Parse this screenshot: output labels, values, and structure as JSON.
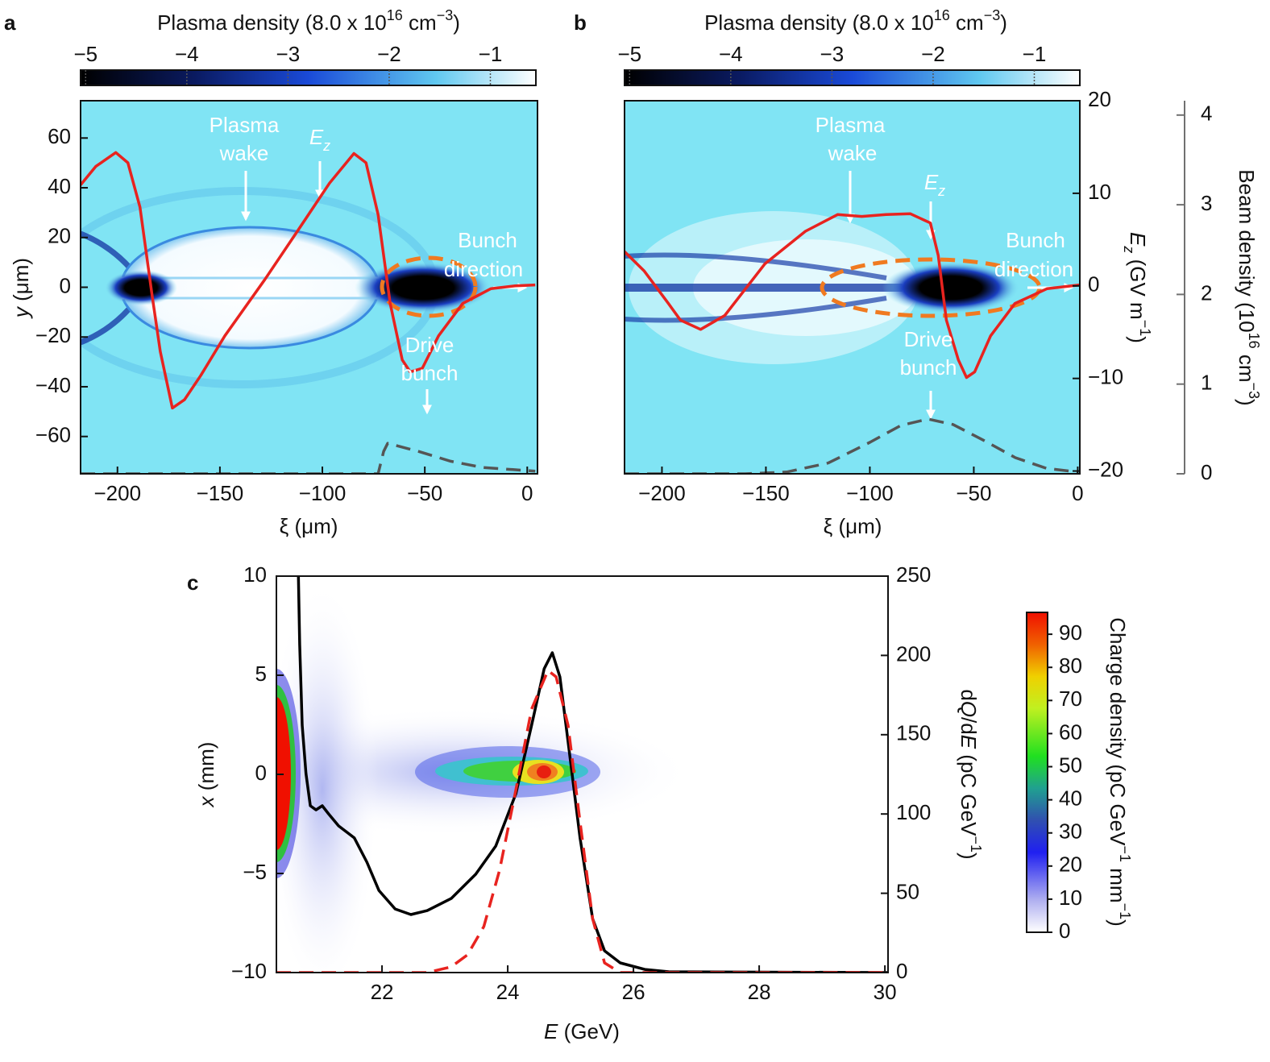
{
  "chart_data": [
    {
      "type": "heatmap",
      "panel_label": "a",
      "colorbar": {
        "label": [
          {
            "text": "Plasma density (8.0 x 10"
          },
          {
            "text": "16",
            "style": "sup"
          },
          {
            "text": " cm"
          },
          {
            "text": "−3",
            "style": "sup"
          },
          {
            "text": ")"
          }
        ],
        "lim": [
          -5.05,
          -0.55
        ],
        "ticks": [
          {
            "value": -5,
            "label": "−5"
          },
          {
            "value": -4,
            "label": "−4"
          },
          {
            "value": -3,
            "label": "−3"
          },
          {
            "value": -2,
            "label": "−2"
          },
          {
            "value": -1,
            "label": "−1"
          }
        ]
      },
      "xlabel": "ξ (μm)",
      "xlim": [
        -218,
        5
      ],
      "xticks": [
        {
          "value": -200,
          "label": "−200"
        },
        {
          "value": -150,
          "label": "−150"
        },
        {
          "value": -100,
          "label": "−100"
        },
        {
          "value": -50,
          "label": "−50"
        },
        0
      ],
      "ylabel": [
        {
          "text": "y",
          "style": "italic"
        },
        {
          "text": " (μm)"
        }
      ],
      "ylim": [
        -75,
        75
      ],
      "yticks": [
        {
          "value": -60,
          "label": "−60"
        },
        {
          "value": -40,
          "label": "−40"
        },
        {
          "value": -20,
          "label": "−20"
        },
        0,
        20,
        40,
        60
      ],
      "y2lim": [
        -20.3,
        20
      ],
      "y3lim": [
        0,
        4.16
      ],
      "series": [
        {
          "color": "#e8231f",
          "axis": "y2",
          "x": [
            -218,
            -210.6,
            -200.8,
            -194.9,
            -189.0,
            -183.1,
            -179.1,
            -173.2,
            -167.3,
            -159.4,
            -147.6,
            -128.0,
            -112.2,
            -96.5,
            -84.6,
            -78.7,
            -72.8,
            -66.9,
            -61.0,
            -57.1,
            -51.2,
            -43.3,
            -31.5,
            -17.7,
            -5.9,
            3.9
          ],
          "values": [
            10.9,
            12.9,
            14.4,
            13.3,
            8.5,
            -1.0,
            -7.1,
            -13.2,
            -12.3,
            -9.7,
            -5.4,
            0.7,
            5.9,
            11.1,
            14.3,
            13.3,
            7.7,
            -1.9,
            -8.0,
            -9.3,
            -8.9,
            -5.4,
            -1.9,
            -0.3,
            0,
            0.1
          ]
        },
        {
          "color": "#555555",
          "axis": "y3",
          "dash": true,
          "x": [
            -218,
            -72.8,
            -70.1,
            -68.1,
            -53.1,
            -37.4,
            -21.7,
            3.9
          ],
          "values": [
            0,
            0,
            0.25,
            0.34,
            0.25,
            0.14,
            0.07,
            0.03
          ]
        }
      ],
      "annotations": [
        {
          "lines": [
            "Plasma",
            "wake"
          ]
        },
        {
          "lines": [
            [
              {
                "text": "E",
                "style": "italic"
              },
              {
                "text": "z",
                "style": "sub"
              }
            ]
          ]
        },
        {
          "lines": [
            "Bunch",
            "direction"
          ]
        },
        {
          "lines": [
            "Drive",
            "bunch"
          ]
        }
      ]
    },
    {
      "type": "heatmap",
      "panel_label": "b",
      "colorbar": {
        "label": [
          {
            "text": "Plasma density (8.0 x 10"
          },
          {
            "text": "16",
            "style": "sup"
          },
          {
            "text": " cm"
          },
          {
            "text": "−3",
            "style": "sup"
          },
          {
            "text": ")"
          }
        ],
        "lim": [
          -5.05,
          -0.55
        ],
        "ticks": [
          {
            "value": -5,
            "label": "−5"
          },
          {
            "value": -4,
            "label": "−4"
          },
          {
            "value": -3,
            "label": "−3"
          },
          {
            "value": -2,
            "label": "−2"
          },
          {
            "value": -1,
            "label": "−1"
          }
        ]
      },
      "xlabel": "ξ (μm)",
      "xlim": [
        -218,
        1
      ],
      "xticks": [
        {
          "value": -200,
          "label": "−200"
        },
        {
          "value": -150,
          "label": "−150"
        },
        {
          "value": -100,
          "label": "−100"
        },
        {
          "value": -50,
          "label": "−50"
        },
        0
      ],
      "ylim": [
        -75,
        75
      ],
      "y2label": [
        {
          "text": "E",
          "style": "italic"
        },
        {
          "text": "z",
          "style": "sub"
        },
        {
          "text": " (GV m"
        },
        {
          "text": "−1",
          "style": "sup"
        },
        {
          "text": ")"
        }
      ],
      "y2lim": [
        -20.3,
        20
      ],
      "y2ticks": [
        {
          "value": -20,
          "label": "−20"
        },
        {
          "value": -10,
          "label": "−10"
        },
        0,
        10,
        20
      ],
      "y2_color": "#e8231f",
      "y3label": [
        {
          "text": "Beam density (10"
        },
        {
          "text": "16",
          "style": "sup"
        },
        {
          "text": " cm"
        },
        {
          "text": "−3",
          "style": "sup"
        },
        {
          "text": ")"
        }
      ],
      "y3lim": [
        0,
        4.16
      ],
      "y3ticks": [
        0,
        1,
        2,
        3,
        4
      ],
      "y3_color": "#707070",
      "series": [
        {
          "color": "#e8231f",
          "axis": "y2",
          "x": [
            -218,
            -208.5,
            -196.9,
            -191.1,
            -181.4,
            -169.8,
            -150.4,
            -131.0,
            -115.5,
            -103.9,
            -92.2,
            -80.6,
            -70.9,
            -67.1,
            -63.2,
            -57.4,
            -53.5,
            -49.6,
            -41.9,
            -30.2,
            -14.7,
            0.8
          ],
          "values": [
            3.7,
            1.6,
            -1.9,
            -3.7,
            -4.7,
            -3.2,
            2.4,
            5.9,
            7.7,
            7.5,
            7.7,
            7.8,
            6.8,
            3.3,
            -3.7,
            -8.0,
            -9.9,
            -9.3,
            -5.4,
            -1.9,
            -0.3,
            0.1
          ]
        },
        {
          "color": "#555555",
          "axis": "y3",
          "dash": true,
          "x": [
            -218,
            -180,
            -160,
            -140,
            -120,
            -100,
            -85,
            -72,
            -60,
            -45,
            -30,
            -15,
            0
          ],
          "values": [
            0,
            0,
            0,
            0.02,
            0.12,
            0.35,
            0.54,
            0.61,
            0.55,
            0.37,
            0.18,
            0.06,
            0.02
          ]
        }
      ],
      "annotations": [
        {
          "lines": [
            "Plasma",
            "wake"
          ]
        },
        {
          "lines": [
            [
              {
                "text": "E",
                "style": "italic"
              },
              {
                "text": "z",
                "style": "sub"
              }
            ]
          ]
        },
        {
          "lines": [
            "Bunch",
            "direction"
          ]
        },
        {
          "lines": [
            "Drive",
            "bunch"
          ]
        }
      ]
    },
    {
      "type": "heatmap",
      "panel_label": "c",
      "colorbar": {
        "label": [
          {
            "text": "Charge density (pC GeV"
          },
          {
            "text": "−1",
            "style": "sup"
          },
          {
            "text": " mm"
          },
          {
            "text": "−1",
            "style": "sup"
          },
          {
            "text": ")"
          }
        ],
        "lim": [
          0,
          96.6
        ],
        "ticks": [
          0,
          10,
          20,
          30,
          40,
          50,
          60,
          70,
          80,
          90
        ]
      },
      "xlabel": [
        {
          "text": "E",
          "style": "italic"
        },
        {
          "text": " (GeV)"
        }
      ],
      "xlim": [
        20.32,
        30.05
      ],
      "xticks": [
        22,
        24,
        26,
        28,
        30
      ],
      "ylabel": [
        {
          "text": "x",
          "style": "italic"
        },
        {
          "text": " (mm)"
        }
      ],
      "ylim": [
        -10,
        10
      ],
      "yticks": [
        {
          "value": -10,
          "label": "−10"
        },
        {
          "value": -5,
          "label": "−5"
        },
        0,
        5,
        10
      ],
      "y2label": [
        {
          "text": "d"
        },
        {
          "text": "Q",
          "style": "italic"
        },
        {
          "text": "/d"
        },
        {
          "text": "E",
          "style": "italic"
        },
        {
          "text": " (pC GeV"
        },
        {
          "text": "−1",
          "style": "sup"
        },
        {
          "text": ")"
        }
      ],
      "y2lim": [
        0,
        250
      ],
      "y2ticks": [
        0,
        50,
        100,
        150,
        200,
        250
      ],
      "series": [
        {
          "color": "#000000",
          "axis": "y2",
          "x": [
            20.67,
            20.69,
            20.73,
            20.79,
            20.86,
            20.95,
            21.05,
            21.15,
            21.31,
            21.56,
            21.76,
            21.95,
            22.21,
            22.46,
            22.72,
            23.1,
            23.49,
            23.81,
            24.13,
            24.38,
            24.58,
            24.71,
            24.83,
            24.96,
            25.15,
            25.35,
            25.54,
            25.79,
            26.18,
            26.56,
            30.05
          ],
          "values": [
            250,
            206.8,
            156,
            125.5,
            105.2,
            102.6,
            105.2,
            100.1,
            92.5,
            84.9,
            69.6,
            51.8,
            40.1,
            36.6,
            39.1,
            46.7,
            62.0,
            79.8,
            112.8,
            156,
            191.6,
            201.7,
            186.5,
            145.8,
            84.9,
            34.0,
            13.7,
            6.1,
            2.0,
            0.5,
            0
          ]
        },
        {
          "color": "#e8231f",
          "axis": "y2",
          "dash": true,
          "x": [
            20.32,
            22.72,
            23.1,
            23.36,
            23.62,
            23.87,
            24.13,
            24.38,
            24.64,
            24.77,
            24.96,
            25.15,
            25.35,
            25.54,
            25.79,
            30.05
          ],
          "values": [
            0,
            0,
            3.6,
            11.2,
            29,
            64.5,
            115.3,
            166.2,
            190.5,
            186.5,
            156,
            95,
            34,
            6.1,
            0,
            0
          ]
        }
      ]
    }
  ]
}
